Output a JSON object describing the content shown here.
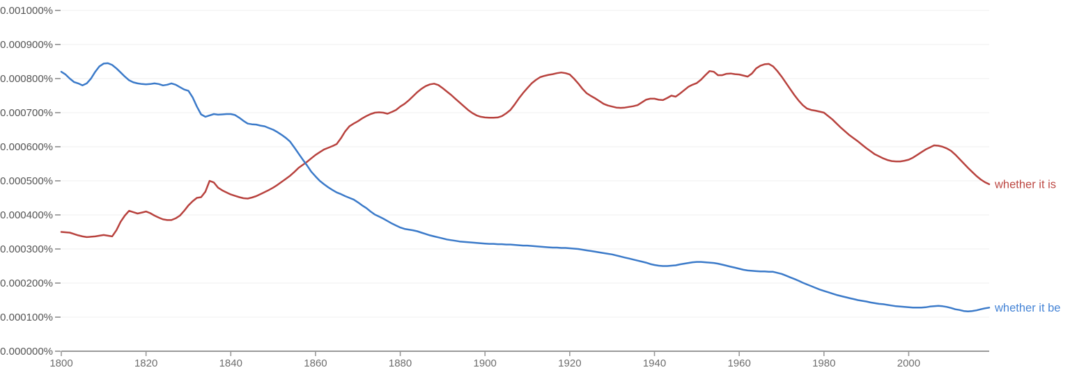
{
  "app": {
    "description": "Google Ngram Viewer frequency chart",
    "background": "#ffffff"
  },
  "axis_style": {
    "grid_color": "#efefef",
    "axis_color": "#999999",
    "tick_color": "#999999",
    "y_dash_color": "#8c8c8c",
    "y_label_color": "#545454",
    "x_label_color": "#6d6d6d"
  },
  "chart_data": {
    "type": "line",
    "title": "",
    "xlabel": "",
    "ylabel": "",
    "grid": "horizontal",
    "legend_position": "right-end-labels",
    "xlim": [
      1800,
      2019
    ],
    "ylim_percent": [
      0,
      0.001
    ],
    "value_unit": "micro-percent (1 unit = 0.000001%)",
    "y_ticks": [
      {
        "value": 1000,
        "label": "0.001000%"
      },
      {
        "value": 900,
        "label": "0.000900%"
      },
      {
        "value": 800,
        "label": "0.000800%"
      },
      {
        "value": 700,
        "label": "0.000700%"
      },
      {
        "value": 600,
        "label": "0.000600%"
      },
      {
        "value": 500,
        "label": "0.000500%"
      },
      {
        "value": 400,
        "label": "0.000400%"
      },
      {
        "value": 300,
        "label": "0.000300%"
      },
      {
        "value": 200,
        "label": "0.000200%"
      },
      {
        "value": 100,
        "label": "0.000100%"
      },
      {
        "value": 0,
        "label": "0.000000%"
      }
    ],
    "x_ticks": [
      {
        "year": 1800,
        "label": "1800"
      },
      {
        "year": 1820,
        "label": "1820"
      },
      {
        "year": 1840,
        "label": "1840"
      },
      {
        "year": 1860,
        "label": "1860"
      },
      {
        "year": 1880,
        "label": "1880"
      },
      {
        "year": 1900,
        "label": "1900"
      },
      {
        "year": 1920,
        "label": "1920"
      },
      {
        "year": 1940,
        "label": "1940"
      },
      {
        "year": 1960,
        "label": "1960"
      },
      {
        "year": 1980,
        "label": "1980"
      },
      {
        "year": 2000,
        "label": "2000"
      }
    ],
    "series": [
      {
        "name": "whether it is",
        "line_color": "#b8423e",
        "label_color": "#bd4843",
        "start_year": 1800,
        "values": [
          350,
          349,
          348,
          344,
          340,
          337,
          335,
          336,
          337,
          339,
          341,
          339,
          337,
          355,
          380,
          398,
          412,
          408,
          404,
          407,
          410,
          405,
          398,
          392,
          387,
          385,
          385,
          390,
          398,
          412,
          428,
          440,
          450,
          452,
          468,
          500,
          495,
          480,
          472,
          466,
          460,
          456,
          452,
          449,
          448,
          451,
          455,
          461,
          467,
          473,
          480,
          488,
          497,
          506,
          515,
          526,
          538,
          547,
          556,
          566,
          576,
          584,
          592,
          597,
          602,
          608,
          625,
          645,
          660,
          668,
          675,
          683,
          690,
          696,
          700,
          701,
          700,
          697,
          702,
          708,
          718,
          726,
          736,
          748,
          760,
          770,
          778,
          783,
          785,
          781,
          772,
          762,
          752,
          741,
          730,
          719,
          708,
          699,
          692,
          688,
          686,
          685,
          685,
          686,
          690,
          698,
          708,
          724,
          742,
          758,
          772,
          786,
          796,
          804,
          808,
          811,
          813,
          816,
          818,
          816,
          812,
          800,
          786,
          770,
          757,
          749,
          742,
          734,
          726,
          721,
          718,
          715,
          714,
          715,
          717,
          719,
          722,
          730,
          738,
          741,
          741,
          738,
          737,
          743,
          750,
          747,
          756,
          766,
          776,
          782,
          787,
          797,
          810,
          822,
          820,
          810,
          810,
          814,
          815,
          813,
          812,
          809,
          806,
          815,
          830,
          838,
          842,
          843,
          836,
          822,
          806,
          788,
          770,
          752,
          736,
          722,
          712,
          708,
          706,
          703,
          700,
          690,
          680,
          668,
          656,
          645,
          634,
          625,
          616,
          606,
          596,
          587,
          578,
          572,
          566,
          561,
          558,
          557,
          557,
          559,
          562,
          568,
          576,
          584,
          592,
          598,
          604,
          603,
          600,
          595,
          588,
          577,
          564,
          551,
          538,
          526,
          514,
          504,
          496,
          490
        ]
      },
      {
        "name": "whether it be",
        "line_color": "#3b7ac9",
        "label_color": "#4584d6",
        "start_year": 1800,
        "values": [
          820,
          812,
          800,
          790,
          786,
          780,
          786,
          800,
          820,
          836,
          844,
          845,
          840,
          830,
          818,
          806,
          795,
          789,
          786,
          784,
          783,
          784,
          786,
          784,
          780,
          782,
          786,
          782,
          775,
          768,
          764,
          745,
          718,
          695,
          688,
          692,
          696,
          694,
          695,
          696,
          696,
          693,
          685,
          676,
          668,
          666,
          665,
          662,
          660,
          655,
          650,
          643,
          635,
          626,
          615,
          598,
          580,
          562,
          545,
          527,
          513,
          500,
          490,
          481,
          473,
          466,
          461,
          455,
          450,
          445,
          437,
          428,
          420,
          410,
          401,
          395,
          389,
          382,
          375,
          369,
          363,
          359,
          357,
          355,
          352,
          348,
          344,
          340,
          337,
          334,
          331,
          328,
          326,
          324,
          322,
          321,
          320,
          319,
          318,
          317,
          316,
          315,
          315,
          314,
          314,
          313,
          313,
          312,
          311,
          310,
          310,
          309,
          308,
          307,
          306,
          305,
          304,
          304,
          303,
          303,
          302,
          301,
          300,
          298,
          296,
          294,
          292,
          290,
          288,
          286,
          284,
          281,
          278,
          275,
          272,
          269,
          266,
          263,
          260,
          256,
          253,
          251,
          250,
          250,
          251,
          252,
          255,
          257,
          259,
          261,
          262,
          262,
          261,
          260,
          259,
          257,
          254,
          251,
          248,
          245,
          242,
          239,
          237,
          236,
          235,
          234,
          234,
          233,
          233,
          230,
          227,
          222,
          217,
          212,
          207,
          201,
          196,
          191,
          186,
          181,
          177,
          173,
          169,
          165,
          162,
          159,
          156,
          153,
          150,
          148,
          146,
          143,
          141,
          139,
          138,
          136,
          134,
          132,
          131,
          130,
          129,
          128,
          128,
          128,
          129,
          131,
          132,
          133,
          132,
          130,
          127,
          123,
          121,
          118,
          117,
          118,
          120,
          123,
          126,
          128
        ]
      }
    ]
  }
}
